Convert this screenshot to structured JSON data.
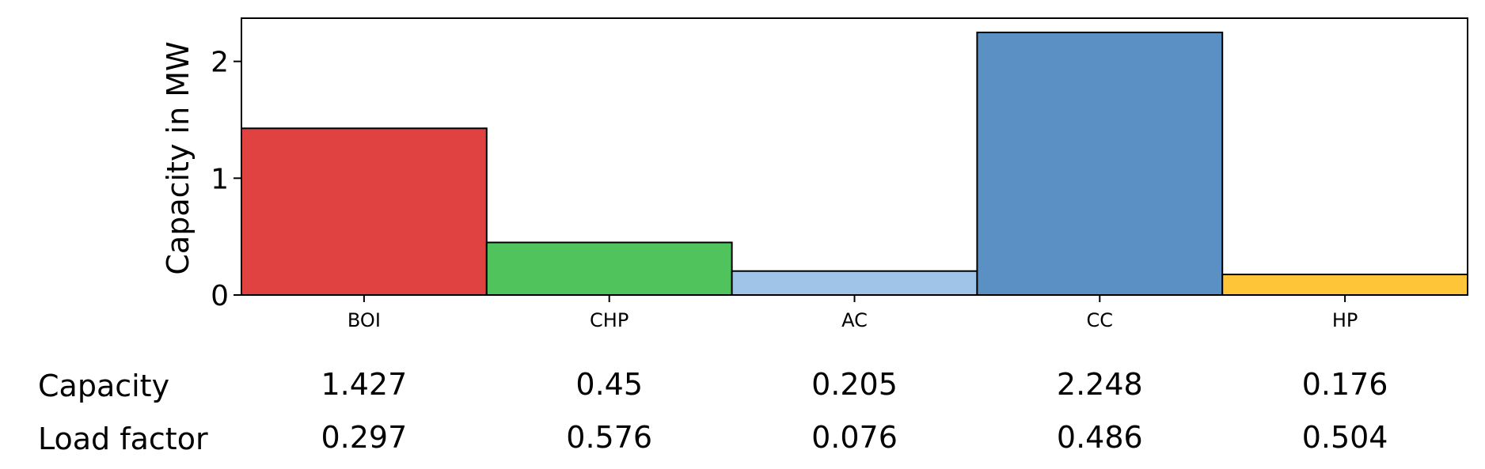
{
  "chart_data": {
    "type": "bar",
    "ylabel": "Capacity in MW",
    "xlabel": "",
    "title": "",
    "ylim": [
      0,
      2.37
    ],
    "yticks": [
      0,
      1,
      2
    ],
    "categories": [
      "BOI",
      "CHP",
      "AC",
      "CC",
      "HP"
    ],
    "values": [
      1.427,
      0.45,
      0.205,
      2.248,
      0.176
    ],
    "colors": [
      "#e04141",
      "#50c35c",
      "#a0c4e8",
      "#5b90c4",
      "#fec538"
    ],
    "bar_edge_color": "#000000",
    "grid": false
  },
  "table": {
    "rows": [
      {
        "label": "Capacity",
        "values": [
          "1.427",
          "0.45",
          "0.205",
          "2.248",
          "0.176"
        ]
      },
      {
        "label": "Load factor",
        "values": [
          "0.297",
          "0.576",
          "0.076",
          "0.486",
          "0.504"
        ]
      }
    ]
  }
}
